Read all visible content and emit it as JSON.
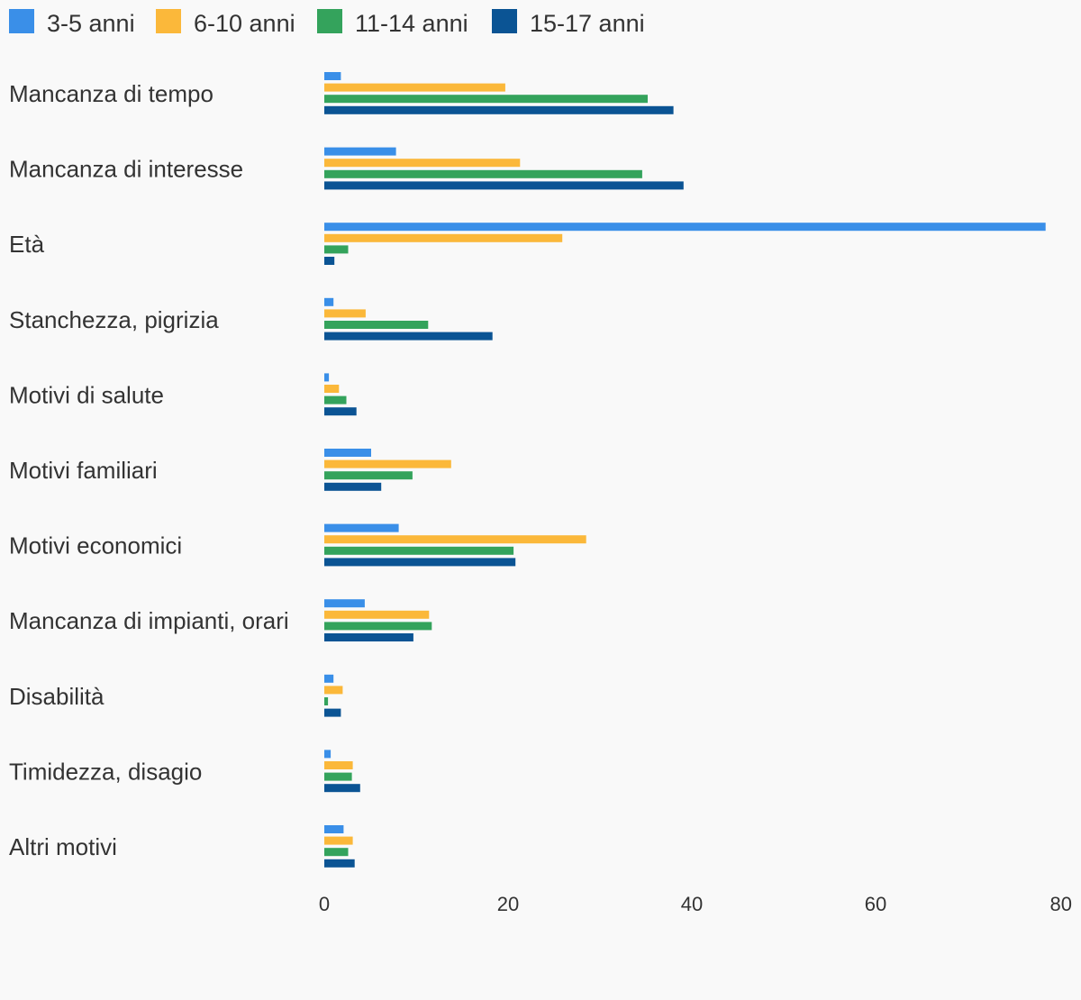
{
  "chart_data": {
    "type": "bar",
    "orientation": "horizontal",
    "title": "",
    "xlabel": "",
    "ylabel": "",
    "xlim": [
      0,
      80
    ],
    "ticks": [
      0,
      20,
      40,
      60,
      80
    ],
    "grid": false,
    "legend_position": "top-left",
    "categories": [
      "Mancanza di tempo",
      "Mancanza di interesse",
      "Età",
      "Stanchezza, pigrizia",
      "Motivi di salute",
      "Motivi familiari",
      "Motivi economici",
      "Mancanza di impianti, orari",
      "Disabilità",
      "Timidezza, disagio",
      "Altri motivi"
    ],
    "series": [
      {
        "name": "3-5 anni",
        "color": "#3a8fe8",
        "values": [
          1.8,
          7.8,
          78.5,
          1.0,
          0.5,
          5.1,
          8.1,
          4.4,
          1.0,
          0.7,
          2.1
        ]
      },
      {
        "name": "6-10 anni",
        "color": "#fbb83a",
        "values": [
          19.7,
          21.3,
          25.9,
          4.5,
          1.6,
          13.8,
          28.5,
          11.4,
          2.0,
          3.1,
          3.1
        ]
      },
      {
        "name": "11-14 anni",
        "color": "#34a35c",
        "values": [
          35.2,
          34.6,
          2.6,
          11.3,
          2.4,
          9.6,
          20.6,
          11.7,
          0.4,
          3.0,
          2.6
        ]
      },
      {
        "name": "15-17 anni",
        "color": "#0b5494",
        "values": [
          38.0,
          39.1,
          1.1,
          18.3,
          3.5,
          6.2,
          20.8,
          9.7,
          1.8,
          3.9,
          3.3
        ]
      }
    ]
  }
}
